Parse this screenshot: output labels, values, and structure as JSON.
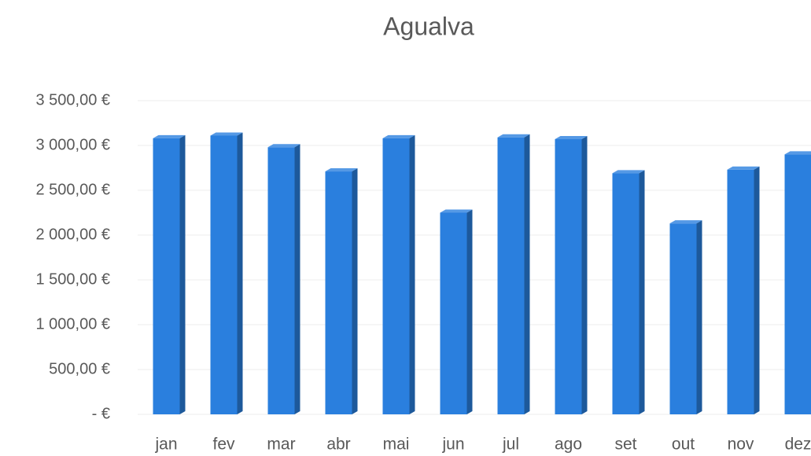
{
  "chart_data": {
    "type": "bar",
    "title": "Agualva",
    "categories": [
      "jan",
      "fev",
      "mar",
      "abr",
      "mai",
      "jun",
      "jul",
      "ago",
      "set",
      "out",
      "nov",
      "dez"
    ],
    "values": [
      3080,
      3110,
      2980,
      2710,
      3080,
      2250,
      3090,
      3070,
      2690,
      2130,
      2730,
      2900
    ],
    "color": "#2a7fde",
    "ylim": [
      0,
      3500
    ],
    "yticks": [
      {
        "value": 0,
        "label": "-   €"
      },
      {
        "value": 500,
        "label": "500,00 €"
      },
      {
        "value": 1000,
        "label": "1 000,00 €"
      },
      {
        "value": 1500,
        "label": "1 500,00 €"
      },
      {
        "value": 2000,
        "label": "2 000,00 €"
      },
      {
        "value": 2500,
        "label": "2 500,00 €"
      },
      {
        "value": 3000,
        "label": "3 000,00 €"
      },
      {
        "value": 3500,
        "label": "3 500,00 €"
      }
    ],
    "grid": true
  }
}
